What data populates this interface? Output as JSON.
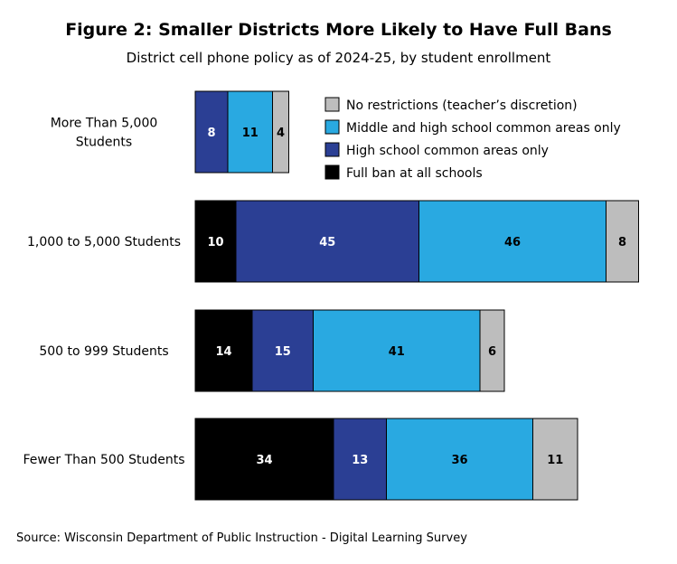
{
  "chart_data": {
    "type": "bar",
    "orientation": "horizontal",
    "stacked": true,
    "title": "Figure 2: Smaller Districts More Likely to Have Full Bans",
    "subtitle": "District cell phone policy as of 2024-25, by student enrollment",
    "categories": [
      "More Than 5,000 Students",
      "1,000 to 5,000 Students",
      "500 to 999 Students",
      "Fewer Than 500 Students"
    ],
    "series": [
      {
        "name": "Full ban at all schools",
        "color": "#000000",
        "label_color": "#ffffff",
        "values": [
          0,
          10,
          14,
          34
        ]
      },
      {
        "name": "High school common areas only",
        "color": "#2b3f94",
        "label_color": "#ffffff",
        "values": [
          8,
          45,
          15,
          13
        ]
      },
      {
        "name": "Middle and high school common areas only",
        "color": "#29a9e1",
        "label_color": "#000000",
        "values": [
          11,
          46,
          41,
          36
        ]
      },
      {
        "name": "No restrictions (teacher’s discretion)",
        "color": "#bdbdbd",
        "label_color": "#000000",
        "values": [
          4,
          8,
          6,
          11
        ]
      }
    ],
    "legend_order": [
      3,
      2,
      1,
      0
    ],
    "legend_placement": "top-right",
    "grid": false,
    "axis_visible": false,
    "source": "Source: Wisconsin Department of Public Instruction - Digital Learning Survey"
  }
}
